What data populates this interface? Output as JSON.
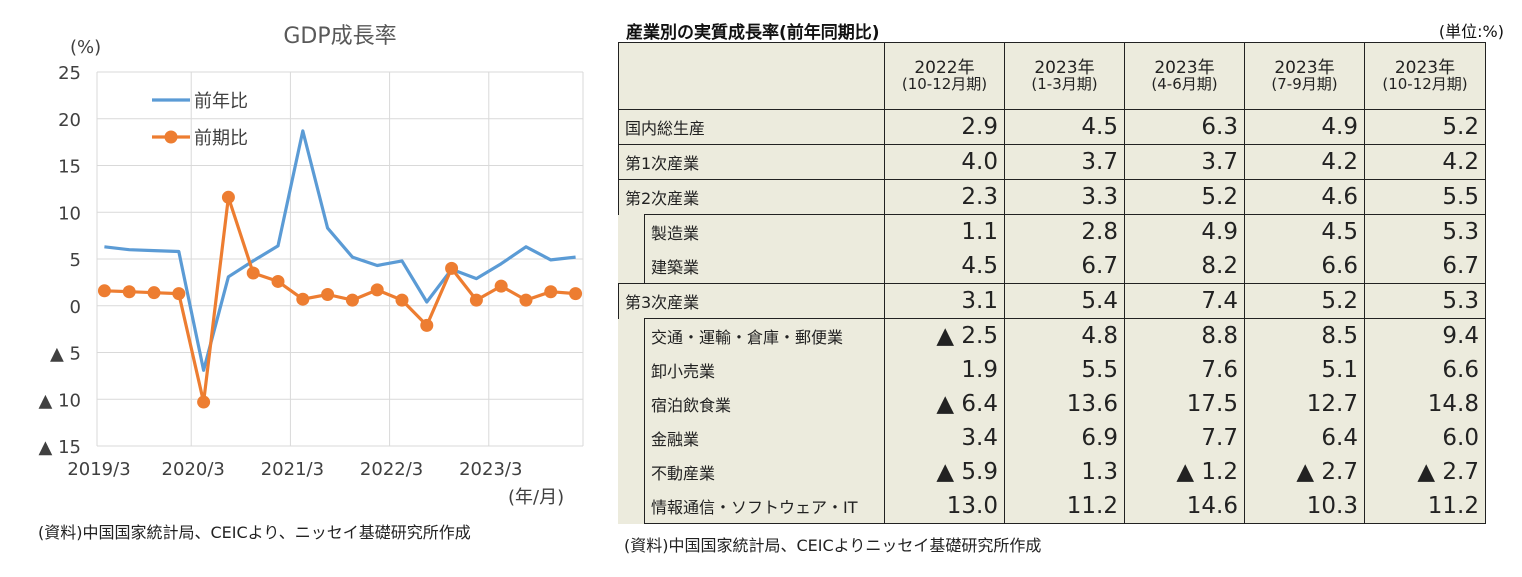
{
  "chart_data": {
    "type": "line",
    "title": "GDP成長率",
    "ylabel": "(%)",
    "xlabel": "(年/月)",
    "ylim": [
      -15,
      25
    ],
    "yticks": [
      {
        "value": 25,
        "label": "25"
      },
      {
        "value": 20,
        "label": "20"
      },
      {
        "value": 15,
        "label": "15"
      },
      {
        "value": 10,
        "label": "10"
      },
      {
        "value": 5,
        "label": "5"
      },
      {
        "value": 0,
        "label": "0"
      },
      {
        "value": -5,
        "label": "▲ 5"
      },
      {
        "value": -10,
        "label": "▲ 10"
      },
      {
        "value": -15,
        "label": "▲ 15"
      }
    ],
    "x_tick_labels": [
      {
        "index": 0,
        "label": "2019/3"
      },
      {
        "index": 4,
        "label": "2020/3"
      },
      {
        "index": 8,
        "label": "2021/3"
      },
      {
        "index": 12,
        "label": "2022/3"
      },
      {
        "index": 16,
        "label": "2023/3"
      }
    ],
    "n_points": 20,
    "grid": true,
    "legend_position": "top-left",
    "series": [
      {
        "name": "前年比",
        "color": "#5b9bd5",
        "markers": false,
        "values": [
          6.3,
          6.0,
          5.9,
          5.8,
          -6.9,
          3.1,
          4.8,
          6.4,
          18.7,
          8.3,
          5.2,
          4.3,
          4.8,
          0.4,
          3.9,
          2.9,
          4.5,
          6.3,
          4.9,
          5.2
        ]
      },
      {
        "name": "前期比",
        "color": "#ed7d31",
        "markers": true,
        "values": [
          1.6,
          1.5,
          1.4,
          1.3,
          -10.3,
          11.6,
          3.5,
          2.6,
          0.7,
          1.2,
          0.6,
          1.7,
          0.6,
          -2.1,
          4.0,
          0.6,
          2.1,
          0.6,
          1.5,
          1.3
        ]
      }
    ]
  },
  "left_source": "(資料)中国国家統計局、CEICより、ニッセイ基礎研究所作成",
  "table": {
    "title": "産業別の実質成長率(前年同期比)",
    "unit": "(単位:%)",
    "columns": [
      {
        "year": "2022年",
        "quarter": "(10-12月期)"
      },
      {
        "year": "2023年",
        "quarter": "(1-3月期)"
      },
      {
        "year": "2023年",
        "quarter": "(4-6月期)"
      },
      {
        "year": "2023年",
        "quarter": "(7-9月期)"
      },
      {
        "year": "2023年",
        "quarter": "(10-12月期)"
      }
    ],
    "rows": [
      {
        "label": "国内総生産",
        "values": [
          "2.9",
          "4.5",
          "6.3",
          "4.9",
          "5.2"
        ]
      },
      {
        "label": "第1次産業",
        "values": [
          "4.0",
          "3.7",
          "3.7",
          "4.2",
          "4.2"
        ]
      },
      {
        "label": "第2次産業",
        "values": [
          "2.3",
          "3.3",
          "5.2",
          "4.6",
          "5.5"
        ]
      },
      {
        "label": "製造業",
        "values": [
          "1.1",
          "2.8",
          "4.9",
          "4.5",
          "5.3"
        ]
      },
      {
        "label": "建築業",
        "values": [
          "4.5",
          "6.7",
          "8.2",
          "6.6",
          "6.7"
        ]
      },
      {
        "label": "第3次産業",
        "values": [
          "3.1",
          "5.4",
          "7.4",
          "5.2",
          "5.3"
        ]
      },
      {
        "label": "交通・運輸・倉庫・郵便業",
        "values": [
          "▲ 2.5",
          "4.8",
          "8.8",
          "8.5",
          "9.4"
        ]
      },
      {
        "label": "卸小売業",
        "values": [
          "1.9",
          "5.5",
          "7.6",
          "5.1",
          "6.6"
        ]
      },
      {
        "label": "宿泊飲食業",
        "values": [
          "▲ 6.4",
          "13.6",
          "17.5",
          "12.7",
          "14.8"
        ]
      },
      {
        "label": "金融業",
        "values": [
          "3.4",
          "6.9",
          "7.7",
          "6.4",
          "6.0"
        ]
      },
      {
        "label": "不動産業",
        "values": [
          "▲ 5.9",
          "1.3",
          "▲ 1.2",
          "▲ 2.7",
          "▲ 2.7"
        ]
      },
      {
        "label": "情報通信・ソフトウェア・IT",
        "values": [
          "13.0",
          "11.2",
          "14.6",
          "10.3",
          "11.2"
        ]
      }
    ],
    "source": "(資料)中国国家統計局、CEICよりニッセイ基礎研究所作成"
  }
}
